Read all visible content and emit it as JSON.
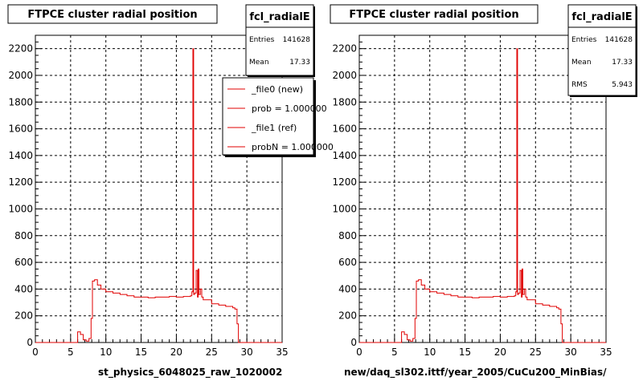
{
  "chart_data": [
    {
      "type": "line",
      "title": "FTPCE cluster radial position",
      "xlabel": "st_physics_6048025_raw_1020002",
      "ylabel": "",
      "xlim": [
        0,
        35
      ],
      "ylim": [
        0,
        2300
      ],
      "x_ticks": [
        "0",
        "5",
        "10",
        "15",
        "20",
        "25",
        "30",
        "35"
      ],
      "y_ticks": [
        "0",
        "200",
        "400",
        "600",
        "800",
        "1000",
        "1200",
        "1400",
        "1600",
        "1800",
        "2000",
        "2200"
      ],
      "grid": true,
      "line_color": "#e00000",
      "stats": {
        "name": "fcl_radialE",
        "rows": [
          {
            "label": "Entries",
            "value": "141628"
          },
          {
            "label": "Mean",
            "value": "17.33"
          }
        ]
      },
      "legend": {
        "placement": "top-right",
        "entries": [
          "_file0 (new)",
          "prob = 1.000000",
          "_file1 (ref)",
          "probN = 1.000000"
        ]
      },
      "series": [
        {
          "x": [
            0,
            5.7,
            6.0,
            6.4,
            6.8,
            7.2,
            7.6,
            7.9,
            8.1,
            8.4,
            8.8,
            9.3,
            10,
            11,
            12,
            13,
            14,
            15,
            16,
            17,
            18,
            19,
            20,
            21,
            22,
            22.2,
            22.35,
            22.45,
            22.6,
            22.8,
            23.0,
            23.1,
            23.2,
            23.4,
            23.6,
            23.8,
            24,
            25,
            26,
            27,
            28,
            28.3,
            28.6,
            28.8,
            29.0,
            35
          ],
          "y": [
            0,
            0,
            80,
            60,
            20,
            10,
            30,
            180,
            460,
            470,
            430,
            400,
            380,
            370,
            360,
            350,
            340,
            340,
            335,
            340,
            340,
            345,
            340,
            345,
            350,
            380,
            2200,
            360,
            370,
            540,
            340,
            550,
            360,
            400,
            340,
            320,
            320,
            290,
            280,
            270,
            260,
            250,
            140,
            0,
            0,
            0
          ]
        }
      ]
    },
    {
      "type": "line",
      "title": "FTPCE cluster radial position",
      "xlabel": "new/daq_sl302.ittf/year_2005/CuCu200_MinBias/",
      "ylabel": "",
      "xlim": [
        0,
        35
      ],
      "ylim": [
        0,
        2300
      ],
      "x_ticks": [
        "0",
        "5",
        "10",
        "15",
        "20",
        "25",
        "30",
        "35"
      ],
      "y_ticks": [
        "0",
        "200",
        "400",
        "600",
        "800",
        "1000",
        "1200",
        "1400",
        "1600",
        "1800",
        "2000",
        "2200"
      ],
      "grid": true,
      "line_color": "#e00000",
      "stats": {
        "name": "fcl_radialE",
        "rows": [
          {
            "label": "Entries",
            "value": "141628"
          },
          {
            "label": "Mean",
            "value": "17.33"
          },
          {
            "label": "RMS",
            "value": "5.943"
          }
        ]
      },
      "series": [
        {
          "x": [
            0,
            5.7,
            6.0,
            6.4,
            6.8,
            7.2,
            7.6,
            7.9,
            8.1,
            8.4,
            8.8,
            9.3,
            10,
            11,
            12,
            13,
            14,
            15,
            16,
            17,
            18,
            19,
            20,
            21,
            22,
            22.2,
            22.35,
            22.45,
            22.6,
            22.8,
            23.0,
            23.1,
            23.2,
            23.4,
            23.6,
            23.8,
            24,
            25,
            26,
            27,
            28,
            28.3,
            28.6,
            28.8,
            29.0,
            35
          ],
          "y": [
            0,
            0,
            80,
            60,
            20,
            10,
            30,
            180,
            460,
            470,
            430,
            400,
            380,
            370,
            360,
            350,
            340,
            340,
            335,
            340,
            340,
            345,
            340,
            345,
            350,
            380,
            2200,
            360,
            370,
            540,
            340,
            550,
            360,
            400,
            340,
            320,
            320,
            290,
            280,
            270,
            260,
            250,
            140,
            0,
            0,
            0
          ]
        }
      ]
    }
  ]
}
